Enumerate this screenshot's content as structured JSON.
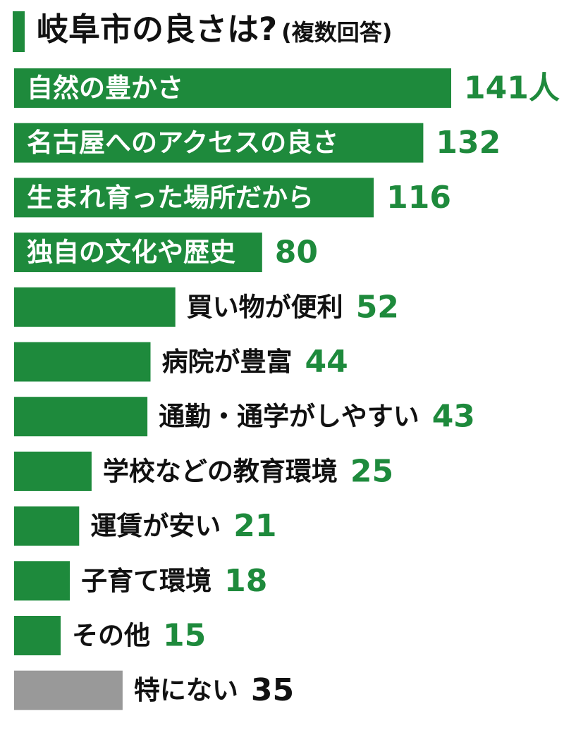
{
  "colors": {
    "bar": "#1e8a3c",
    "bar_none": "#999999",
    "value_text": "#1e8a3c",
    "value_text_none": "#111111",
    "label_outside": "#111111",
    "label_inside": "#ffffff"
  },
  "chart_data": {
    "type": "bar",
    "orientation": "horizontal",
    "title": "岐阜市の良さは?",
    "subtitle": "(複数回答)",
    "unit": "人",
    "categories": [
      "自然の豊かさ",
      "名古屋へのアクセスの良さ",
      "生まれ育った場所だから",
      "独自の文化や歴史",
      "買い物が便利",
      "病院が豊富",
      "通勤・通学がしやすい",
      "学校などの教育環境",
      "運賃が安い",
      "子育て環境",
      "その他",
      "特にない"
    ],
    "values": [
      141,
      132,
      116,
      80,
      52,
      44,
      43,
      25,
      21,
      18,
      15,
      35
    ],
    "value_labels": [
      "141人",
      "132",
      "116",
      "80",
      "52",
      "44",
      "43",
      "25",
      "21",
      "18",
      "15",
      "35"
    ],
    "label_inside": [
      true,
      true,
      true,
      true,
      false,
      false,
      false,
      false,
      false,
      false,
      false,
      false
    ],
    "highlight_gray": [
      false,
      false,
      false,
      false,
      false,
      false,
      false,
      false,
      false,
      false,
      false,
      true
    ],
    "xlim": [
      0,
      141
    ],
    "grid": false,
    "legend": "none"
  }
}
